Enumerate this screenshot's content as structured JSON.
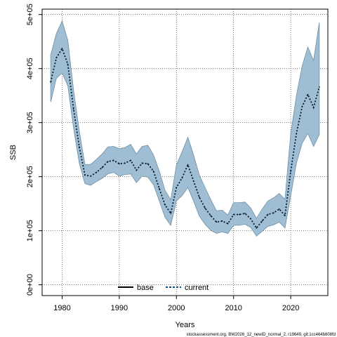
{
  "chart_data": {
    "type": "line",
    "xlabel": "Years",
    "ylabel": "SSB",
    "xlim": [
      1976.5,
      2026.5
    ],
    "ylim": [
      -20000,
      510000
    ],
    "x_ticks": [
      1980,
      1990,
      2000,
      2010,
      2020
    ],
    "x_tick_labels": [
      "1980",
      "1990",
      "2000",
      "2010",
      "2020"
    ],
    "y_ticks": [
      0,
      100000,
      200000,
      300000,
      400000,
      500000
    ],
    "y_tick_labels": [
      "0e+00",
      "1e+05",
      "2e+05",
      "3e+05",
      "4e+05",
      "5e+05"
    ],
    "grid": true,
    "legend_position": "bottom",
    "legend": [
      {
        "label": "base",
        "color": "#000000",
        "style": "solid"
      },
      {
        "label": "current",
        "color": "#0b4f7a",
        "style": "dotted"
      }
    ],
    "band_color": "#7aa6c2",
    "years": [
      1978,
      1979,
      1980,
      1981,
      1982,
      1983,
      1984,
      1985,
      1986,
      1987,
      1988,
      1989,
      1990,
      1991,
      1992,
      1993,
      1994,
      1995,
      1996,
      1997,
      1998,
      1999,
      2000,
      2001,
      2002,
      2003,
      2004,
      2005,
      2006,
      2007,
      2008,
      2009,
      2010,
      2011,
      2012,
      2013,
      2014,
      2015,
      2016,
      2017,
      2018,
      2019,
      2020,
      2021,
      2022,
      2023,
      2024,
      2025
    ],
    "series": [
      {
        "name": "current",
        "values": [
          375000,
          420000,
          437000,
          408000,
          325000,
          255000,
          203000,
          201000,
          208000,
          217000,
          228000,
          230000,
          224000,
          225000,
          230000,
          212000,
          225000,
          224000,
          210000,
          178000,
          148000,
          132000,
          180000,
          198000,
          222000,
          192000,
          162000,
          142000,
          128000,
          116000,
          118000,
          113000,
          130000,
          130000,
          132000,
          122000,
          105000,
          118000,
          130000,
          133000,
          140000,
          128000,
          210000,
          280000,
          330000,
          352000,
          328000,
          366000
        ]
      }
    ],
    "upper": [
      425000,
      465000,
      488000,
      452000,
      360000,
      285000,
      222000,
      223000,
      232000,
      242000,
      255000,
      256000,
      252000,
      254000,
      260000,
      242000,
      256000,
      258000,
      240000,
      210000,
      175000,
      157000,
      222000,
      246000,
      273000,
      240000,
      203000,
      180000,
      158000,
      137000,
      138000,
      129000,
      152000,
      152000,
      153000,
      142000,
      123000,
      140000,
      155000,
      161000,
      169000,
      158000,
      280000,
      350000,
      405000,
      440000,
      415000,
      485000
    ],
    "lower": [
      338000,
      382000,
      392000,
      368000,
      290000,
      225000,
      187000,
      184000,
      191000,
      197000,
      205000,
      208000,
      201000,
      204000,
      205000,
      189000,
      201000,
      199000,
      185000,
      155000,
      125000,
      110000,
      155000,
      165000,
      180000,
      155000,
      127000,
      112000,
      101000,
      95000,
      98000,
      95000,
      110000,
      110000,
      112000,
      106000,
      90000,
      99000,
      108000,
      111000,
      116000,
      105000,
      165000,
      225000,
      262000,
      280000,
      256000,
      278000
    ]
  },
  "footer": "stockassessment.org, BW2026_12_newID_normal_2, r19649, git:1cc464b808fd"
}
